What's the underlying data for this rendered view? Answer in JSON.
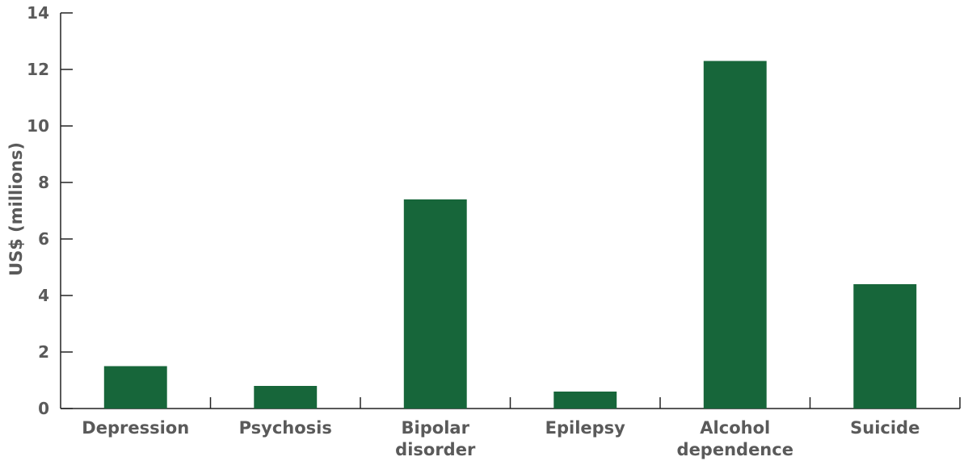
{
  "chart_data": {
    "type": "bar",
    "categories": [
      [
        "Depression"
      ],
      [
        "Psychosis"
      ],
      [
        "Bipolar",
        "disorder"
      ],
      [
        "Epilepsy"
      ],
      [
        "Alcohol",
        "dependence"
      ],
      [
        "Suicide"
      ]
    ],
    "values": [
      1.5,
      0.8,
      7.4,
      0.6,
      12.3,
      4.4
    ],
    "title": "",
    "xlabel": "",
    "ylabel": "US$ (millions)",
    "ylim": [
      0,
      14
    ],
    "yticks": [
      0,
      2,
      4,
      6,
      8,
      10,
      12,
      14
    ],
    "grid": false,
    "legend": "none",
    "bar_color": "#17663a"
  }
}
